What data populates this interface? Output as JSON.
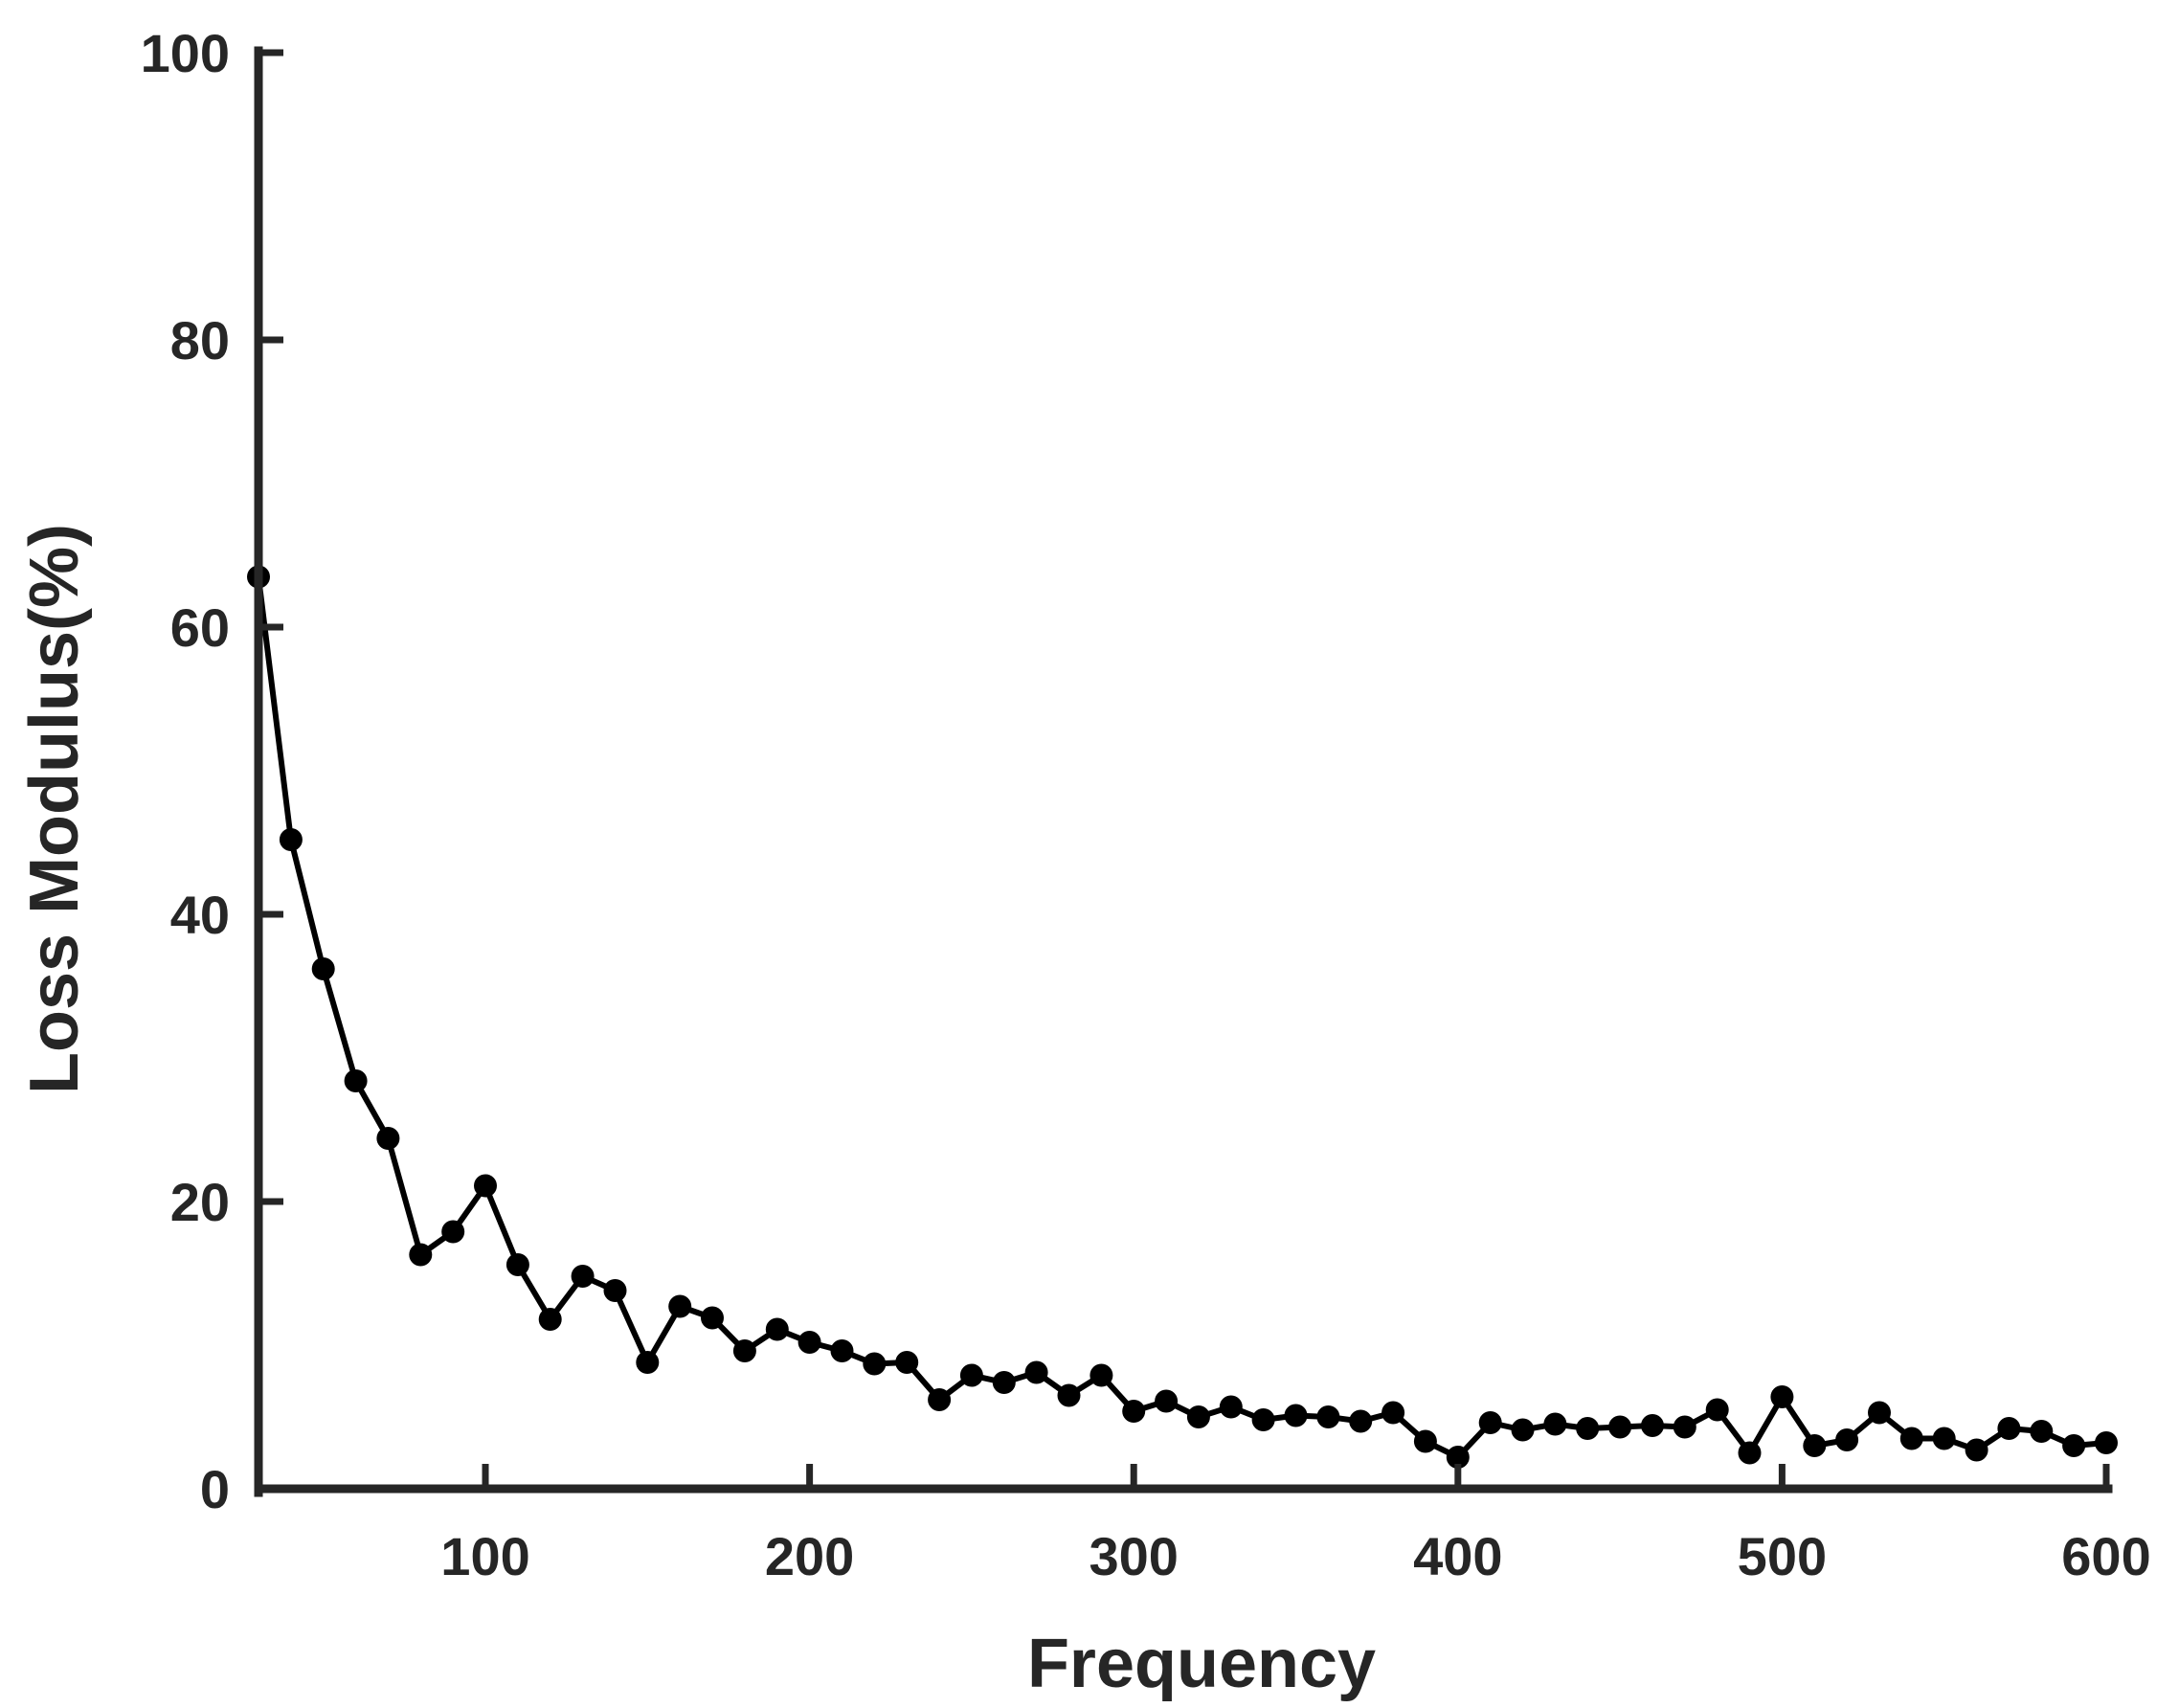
{
  "chart_data": {
    "type": "line",
    "title": "",
    "xlabel": "Frequency",
    "ylabel": "Loss Modulus(%)",
    "xlim": [
      30,
      600
    ],
    "ylim": [
      0,
      100
    ],
    "x_ticks": [
      100,
      200,
      300,
      400,
      500,
      600
    ],
    "y_ticks": [
      0,
      20,
      40,
      60,
      80,
      100
    ],
    "grid": false,
    "line_color": "#000000",
    "axis_color": "#262626",
    "marker": "filled-circle",
    "series": [
      {
        "x": [
          30,
          40,
          50,
          60,
          70,
          80,
          90,
          100,
          110,
          120,
          130,
          140,
          150,
          160,
          170,
          180,
          190,
          200,
          210,
          220,
          230,
          240,
          250,
          260,
          270,
          280,
          290,
          300,
          310,
          320,
          330,
          340,
          350,
          360,
          370,
          380,
          390,
          400,
          410,
          420,
          430,
          440,
          450,
          460,
          470,
          480,
          490,
          500,
          510,
          520,
          530,
          540,
          550,
          560,
          570,
          580,
          590,
          600
        ],
        "y": [
          63.5,
          45.2,
          36.2,
          28.4,
          24.4,
          16.3,
          17.9,
          21.1,
          15.6,
          11.8,
          14.8,
          13.8,
          8.8,
          12.7,
          11.9,
          9.6,
          11.1,
          10.2,
          9.6,
          8.7,
          8.8,
          6.2,
          7.9,
          7.4,
          8.1,
          6.5,
          7.9,
          5.4,
          6.1,
          5.0,
          5.7,
          4.8,
          5.1,
          5.0,
          4.7,
          5.3,
          3.3,
          2.2,
          4.6,
          4.1,
          4.5,
          4.2,
          4.3,
          4.4,
          4.3,
          5.5,
          2.5,
          6.4,
          3.0,
          3.4,
          5.3,
          3.5,
          3.5,
          2.7,
          4.2,
          4.0,
          3.0,
          3.2
        ]
      }
    ]
  }
}
